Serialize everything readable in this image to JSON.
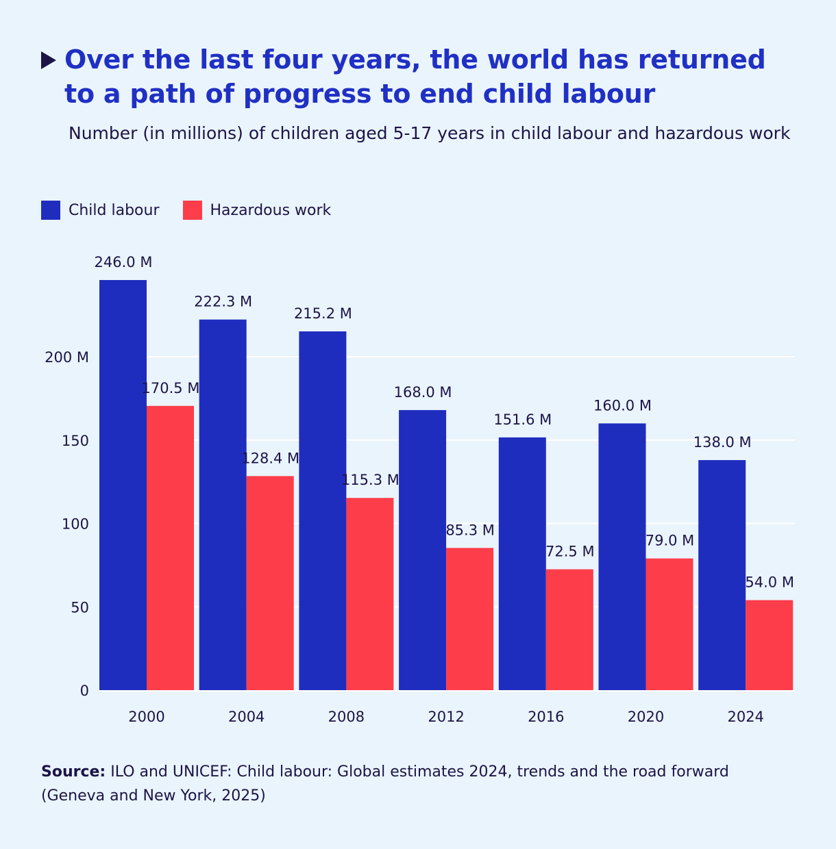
{
  "title": "Over the last four years, the world has returned to a path of progress to end child labour",
  "subtitle": "Number (in millions) of children aged 5-17 years in child labour and hazardous work",
  "source_label": "Source:",
  "source_text": "ILO and UNICEF: Child labour: Global estimates 2024, trends and the road forward (Geneva and New York, 2025)",
  "colors": {
    "background": "#eaf4fc",
    "child_labour": "#1f2dbe",
    "hazardous_work": "#fd3d4a",
    "title": "#2030c4",
    "text": "#1c1446",
    "gridline": "#ffffff"
  },
  "chart_data": {
    "type": "bar",
    "title": "Over the last four years, the world has returned to a path of progress to end child labour",
    "subtitle": "Number (in millions) of children aged 5-17 years in child labour and hazardous work",
    "xlabel": "",
    "ylabel": "",
    "categories": [
      "2000",
      "2004",
      "2008",
      "2012",
      "2016",
      "2020",
      "2024"
    ],
    "series": [
      {
        "name": "Child labour",
        "values": [
          246.0,
          222.3,
          215.2,
          168.0,
          151.6,
          160.0,
          138.0
        ],
        "labels": [
          "246.0 M",
          "222.3 M",
          "215.2 M",
          "168.0 M",
          "151.6 M",
          "160.0 M",
          "138.0 M"
        ]
      },
      {
        "name": "Hazardous work",
        "values": [
          170.5,
          128.4,
          115.3,
          85.3,
          72.5,
          79.0,
          54.0
        ],
        "labels": [
          "170.5 M",
          "128.4 M",
          "115.3 M",
          "85.3 M",
          "72.5 M",
          "79.0 M",
          "54.0 M"
        ]
      }
    ],
    "ylim": [
      0,
      246
    ],
    "yticks": [
      0,
      50,
      100,
      150,
      200
    ],
    "ytick_labels": [
      "0",
      "50",
      "100",
      "150",
      "200 M"
    ],
    "grid": true,
    "legend_position": "top-left"
  }
}
